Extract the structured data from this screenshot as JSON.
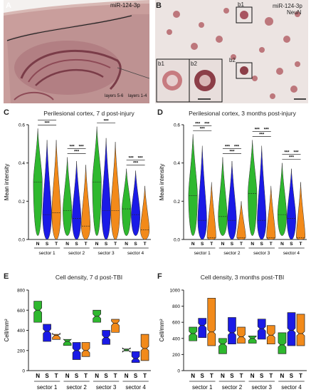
{
  "panels": {
    "A": {
      "label": "A",
      "stain": "miR-124-3p",
      "layer_labels": [
        "layers 5-6",
        "layers 1-4"
      ]
    },
    "B": {
      "label": "B",
      "stain_1": "miR-124-3p",
      "stain_2": "NeuN",
      "insets": [
        "b1",
        "b2"
      ],
      "inset_labels_zoom": [
        "b1",
        "b2"
      ]
    },
    "C": {
      "label": "C",
      "title": "Perilesional cortex, 7 d post-injury",
      "ylabel": "Mean intensity"
    },
    "D": {
      "label": "D",
      "title": "Perilesional cortex, 3 months post-injury",
      "ylabel": "Mean intensity"
    },
    "E": {
      "label": "E",
      "title": "Cell density, 7 d post-TBI",
      "ylabel": "Cell/mm²"
    },
    "F": {
      "label": "F",
      "title": "Cell density, 3 months post-TBI",
      "ylabel": "Cell/mm²"
    }
  },
  "significance": "***",
  "colors": {
    "N": "#2eb82e",
    "S": "#1a1ae6",
    "T": "#f28a1a"
  },
  "chart_data": [
    {
      "id": "C",
      "type": "violin",
      "title": "Perilesional cortex, 7 d post-injury",
      "ylabel": "Mean intensity",
      "ylim": [
        0,
        0.6
      ],
      "yticks": [
        "0.0",
        "0.2",
        "0.4",
        "0.6"
      ],
      "groups": [
        "N",
        "S",
        "T"
      ],
      "categories": [
        "sector 1",
        "sector 2",
        "sector 3",
        "sector 4"
      ],
      "series": [
        {
          "sector": "sector 1",
          "N": {
            "min": 0.02,
            "max": 0.58,
            "median": 0.3
          },
          "S": {
            "min": 0.0,
            "max": 0.52,
            "median": 0.13
          },
          "T": {
            "min": 0.0,
            "max": 0.52,
            "median": 0.14
          }
        },
        {
          "sector": "sector 2",
          "N": {
            "min": 0.02,
            "max": 0.43,
            "median": 0.15
          },
          "S": {
            "min": 0.0,
            "max": 0.41,
            "median": 0.11
          },
          "T": {
            "min": 0.0,
            "max": 0.39,
            "median": 0.07
          }
        },
        {
          "sector": "sector 3",
          "N": {
            "min": 0.02,
            "max": 0.59,
            "median": 0.3
          },
          "S": {
            "min": 0.0,
            "max": 0.53,
            "median": 0.15
          },
          "T": {
            "min": 0.0,
            "max": 0.51,
            "median": 0.15
          }
        },
        {
          "sector": "sector 4",
          "N": {
            "min": 0.02,
            "max": 0.37,
            "median": 0.16
          },
          "S": {
            "min": 0.02,
            "max": 0.36,
            "median": 0.13
          },
          "T": {
            "min": 0.0,
            "max": 0.28,
            "median": 0.05
          }
        }
      ]
    },
    {
      "id": "D",
      "type": "violin",
      "title": "Perilesional cortex, 3 months post-injury",
      "ylabel": "Mean intensity",
      "ylim": [
        0,
        0.6
      ],
      "yticks": [
        "0.0",
        "0.2",
        "0.4",
        "0.6"
      ],
      "groups": [
        "N",
        "S",
        "T"
      ],
      "categories": [
        "sector 1",
        "sector 2",
        "sector 3",
        "sector 4"
      ],
      "series": [
        {
          "sector": "sector 1",
          "N": {
            "min": 0.02,
            "max": 0.55,
            "median": 0.23
          },
          "S": {
            "min": 0.0,
            "max": 0.49,
            "median": 0.1
          },
          "T": {
            "min": 0.0,
            "max": 0.3,
            "median": 0.01
          }
        },
        {
          "sector": "sector 2",
          "N": {
            "min": 0.02,
            "max": 0.43,
            "median": 0.12
          },
          "S": {
            "min": 0.0,
            "max": 0.41,
            "median": 0.1
          },
          "T": {
            "min": 0.0,
            "max": 0.2,
            "median": 0.01
          }
        },
        {
          "sector": "sector 3",
          "N": {
            "min": 0.02,
            "max": 0.52,
            "median": 0.24
          },
          "S": {
            "min": 0.0,
            "max": 0.49,
            "median": 0.1
          },
          "T": {
            "min": 0.0,
            "max": 0.28,
            "median": 0.01
          }
        },
        {
          "sector": "sector 4",
          "N": {
            "min": 0.02,
            "max": 0.4,
            "median": 0.13
          },
          "S": {
            "min": 0.0,
            "max": 0.37,
            "median": 0.11
          },
          "T": {
            "min": 0.0,
            "max": 0.3,
            "median": 0.01
          }
        }
      ]
    },
    {
      "id": "E",
      "type": "boxplot",
      "title": "Cell density, 7 d post-TBI",
      "ylabel": "Cell/mm²",
      "ylim": [
        0,
        800
      ],
      "yticks": [
        "0",
        "200",
        "400",
        "600",
        "800"
      ],
      "groups": [
        "N",
        "S",
        "T"
      ],
      "categories": [
        "sector 1",
        "sector 2",
        "sector 3",
        "sector 4"
      ],
      "series": [
        {
          "sector": "sector 1",
          "N": {
            "min": 470,
            "q1": 480,
            "median": 600,
            "q3": 690,
            "max": 690
          },
          "S": {
            "min": 280,
            "q1": 290,
            "median": 390,
            "q3": 460,
            "max": 460
          },
          "T": {
            "min": 300,
            "q1": 310,
            "median": 350,
            "q3": 360,
            "max": 360
          }
        },
        {
          "sector": "sector 2",
          "N": {
            "min": 240,
            "q1": 250,
            "median": 290,
            "q3": 310,
            "max": 310
          },
          "S": {
            "min": 100,
            "q1": 110,
            "median": 200,
            "q3": 280,
            "max": 280
          },
          "T": {
            "min": 130,
            "q1": 140,
            "median": 200,
            "q3": 280,
            "max": 280
          }
        },
        {
          "sector": "sector 3",
          "N": {
            "min": 470,
            "q1": 480,
            "median": 540,
            "q3": 600,
            "max": 600
          },
          "S": {
            "min": 250,
            "q1": 260,
            "median": 330,
            "q3": 400,
            "max": 400
          },
          "T": {
            "min": 370,
            "q1": 380,
            "median": 470,
            "q3": 510,
            "max": 510
          }
        },
        {
          "sector": "sector 4",
          "N": {
            "min": 190,
            "q1": 195,
            "median": 205,
            "q3": 215,
            "max": 215
          },
          "S": {
            "min": 70,
            "q1": 80,
            "median": 120,
            "q3": 190,
            "max": 190
          },
          "T": {
            "min": 90,
            "q1": 100,
            "median": 220,
            "q3": 360,
            "max": 360
          }
        }
      ]
    },
    {
      "id": "F",
      "type": "boxplot",
      "title": "Cell density, 3 months post-TBI",
      "ylabel": "Cell/mm²",
      "ylim": [
        0,
        1000
      ],
      "yticks": [
        "0",
        "200",
        "400",
        "600",
        "800",
        "1000"
      ],
      "groups": [
        "N",
        "S",
        "T"
      ],
      "categories": [
        "sector 1",
        "sector 2",
        "sector 3",
        "sector 4"
      ],
      "series": [
        {
          "sector": "sector 1",
          "N": {
            "min": 360,
            "q1": 370,
            "median": 460,
            "q3": 540,
            "max": 540
          },
          "S": {
            "min": 400,
            "q1": 410,
            "median": 560,
            "q3": 650,
            "max": 650
          },
          "T": {
            "min": 300,
            "q1": 310,
            "median": 480,
            "q3": 900,
            "max": 900
          }
        },
        {
          "sector": "sector 2",
          "N": {
            "min": 200,
            "q1": 210,
            "median": 330,
            "q3": 400,
            "max": 400
          },
          "S": {
            "min": 320,
            "q1": 330,
            "median": 470,
            "q3": 660,
            "max": 660
          },
          "T": {
            "min": 330,
            "q1": 340,
            "median": 420,
            "q3": 540,
            "max": 540
          }
        },
        {
          "sector": "sector 3",
          "N": {
            "min": 330,
            "q1": 340,
            "median": 400,
            "q3": 430,
            "max": 430
          },
          "S": {
            "min": 380,
            "q1": 390,
            "median": 520,
            "q3": 640,
            "max": 640
          },
          "T": {
            "min": 320,
            "q1": 330,
            "median": 440,
            "q3": 560,
            "max": 560
          }
        },
        {
          "sector": "sector 4",
          "N": {
            "min": 200,
            "q1": 210,
            "median": 320,
            "q3": 470,
            "max": 470
          },
          "S": {
            "min": 300,
            "q1": 310,
            "median": 500,
            "q3": 720,
            "max": 720
          },
          "T": {
            "min": 300,
            "q1": 310,
            "median": 460,
            "q3": 700,
            "max": 700
          }
        }
      ]
    }
  ]
}
